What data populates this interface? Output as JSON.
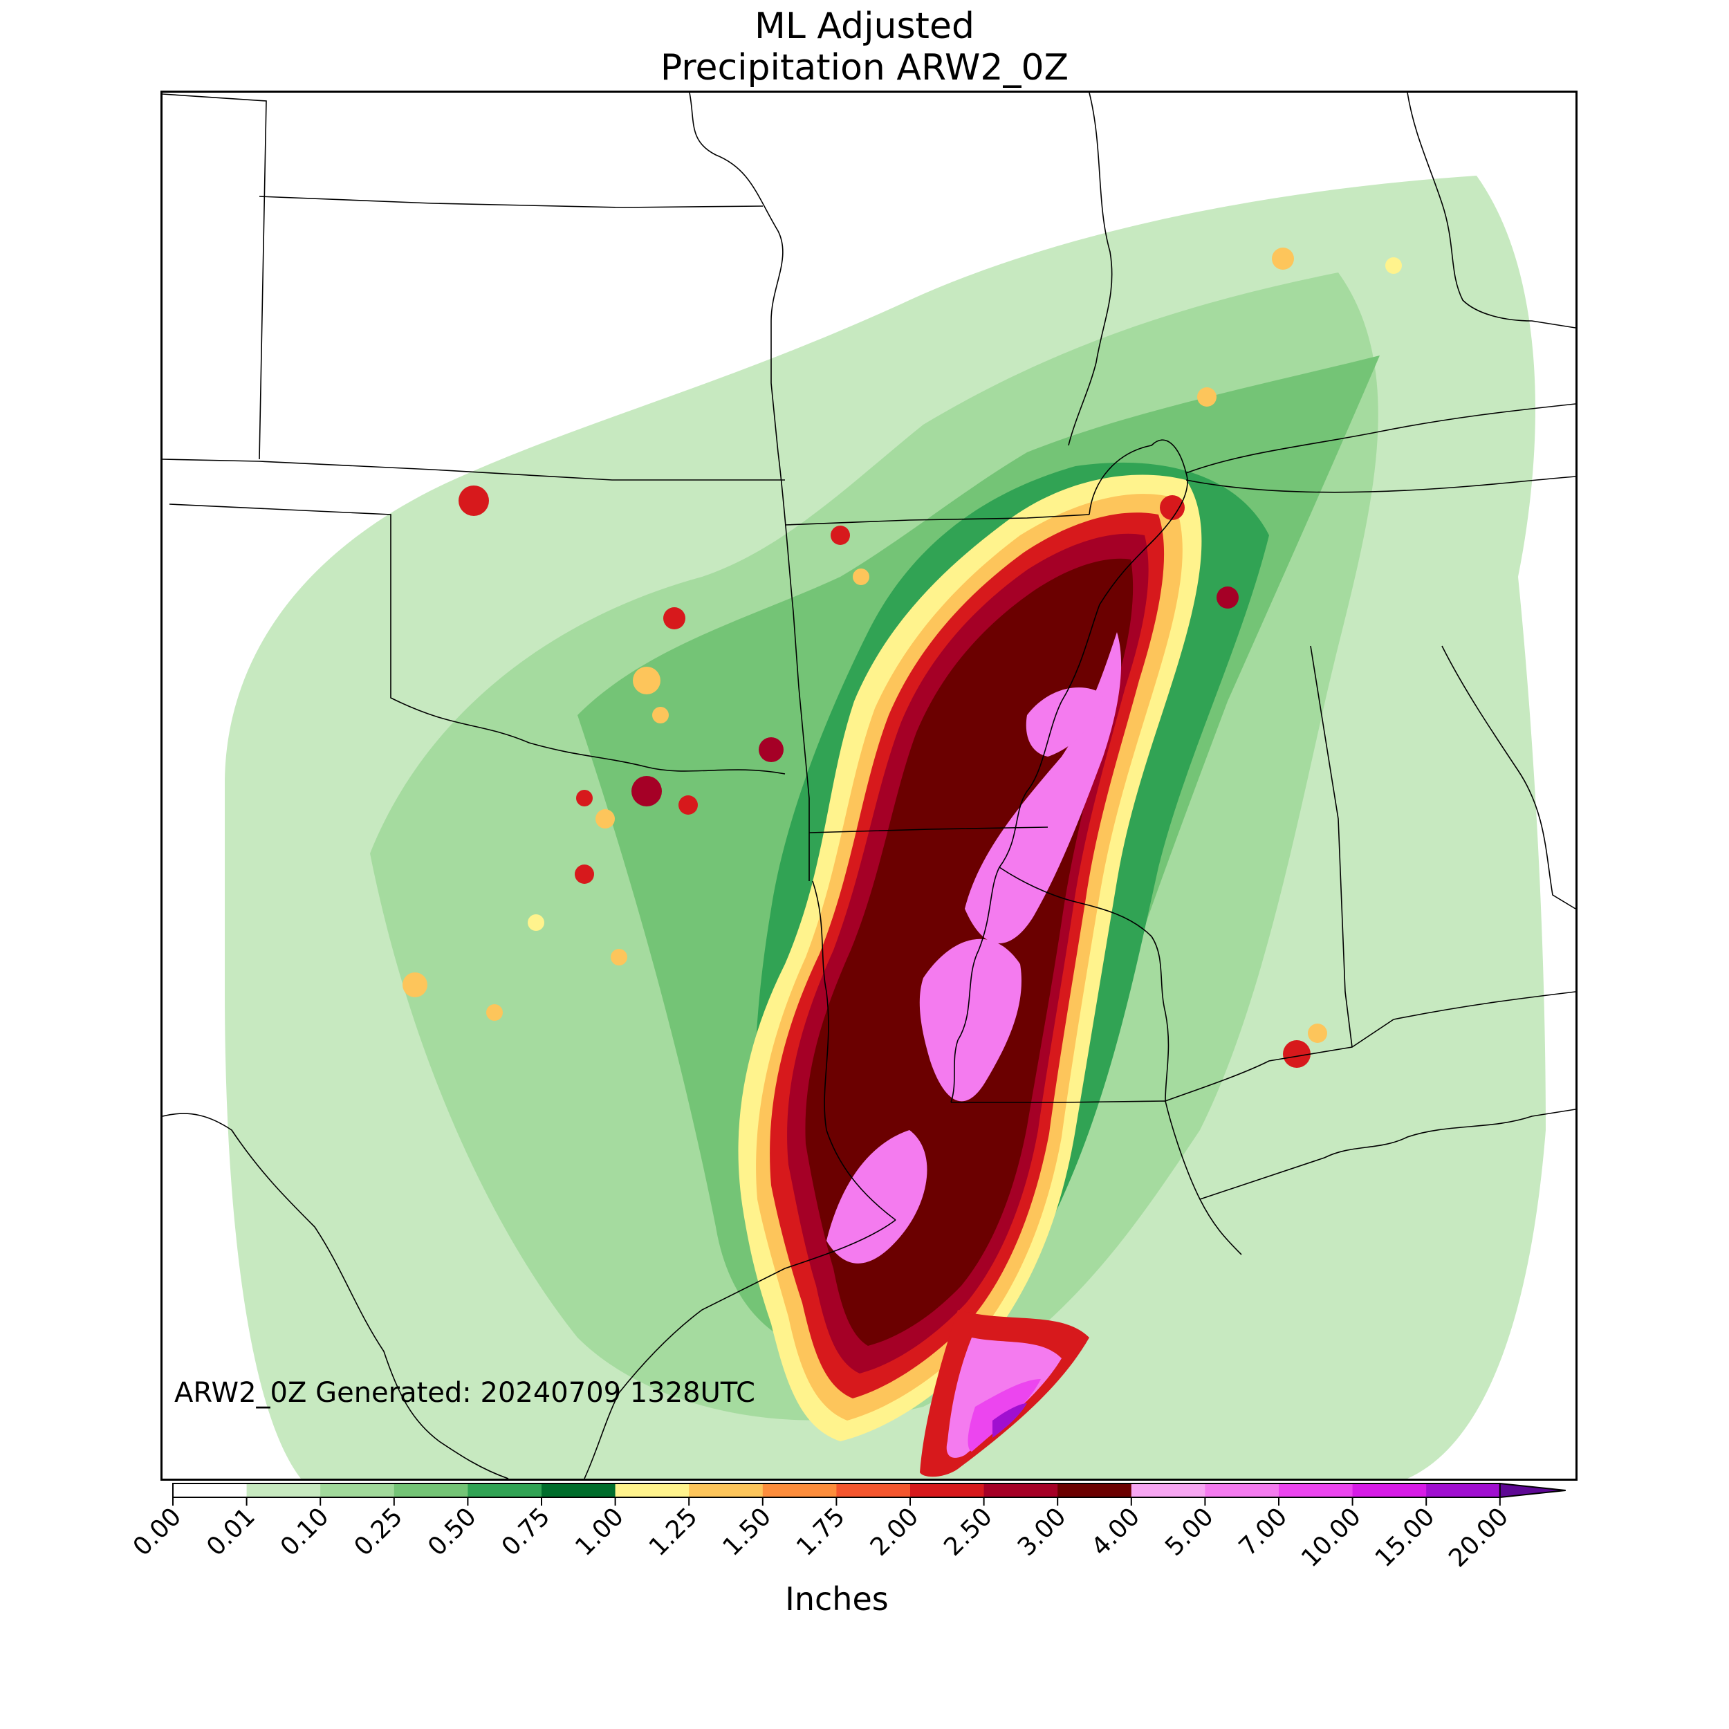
{
  "title_line1": "ML Adjusted",
  "title_line2": "Precipitation ARW2_0Z",
  "generated_stamp": "ARW2_0Z Generated: 20240709 1328UTC",
  "colorbar": {
    "units_label": "Inches",
    "ticks": [
      "0.00",
      "0.01",
      "0.10",
      "0.25",
      "0.50",
      "0.75",
      "1.00",
      "1.25",
      "1.50",
      "1.75",
      "2.00",
      "2.50",
      "3.00",
      "4.00",
      "5.00",
      "7.00",
      "10.00",
      "15.00",
      "20.00"
    ],
    "colors": [
      "#ffffff",
      "#c7e9c0",
      "#a1d99b",
      "#74c476",
      "#31a354",
      "#006d2c",
      "#fff38d",
      "#fdc55b",
      "#fd8d3c",
      "#f4562e",
      "#d7191c",
      "#a50026",
      "#6b0000",
      "#f7a6f2",
      "#f47bef",
      "#ec45ef",
      "#d61be6",
      "#a00fd0"
    ],
    "extend_color": "#5e0894"
  },
  "palette": {
    "light_green": "#c7e9c0",
    "green": "#a1d99b",
    "mid_green": "#74c476",
    "dark_green": "#31a354",
    "deep_green": "#006d2c",
    "yellow": "#fff38d",
    "orange": "#fdc55b",
    "red_orange": "#f4562e",
    "red": "#d7191c",
    "dark_red": "#a50026",
    "maroon": "#6b0000",
    "pink": "#f47bef",
    "magenta": "#ec45ef",
    "purple": "#a00fd0"
  }
}
